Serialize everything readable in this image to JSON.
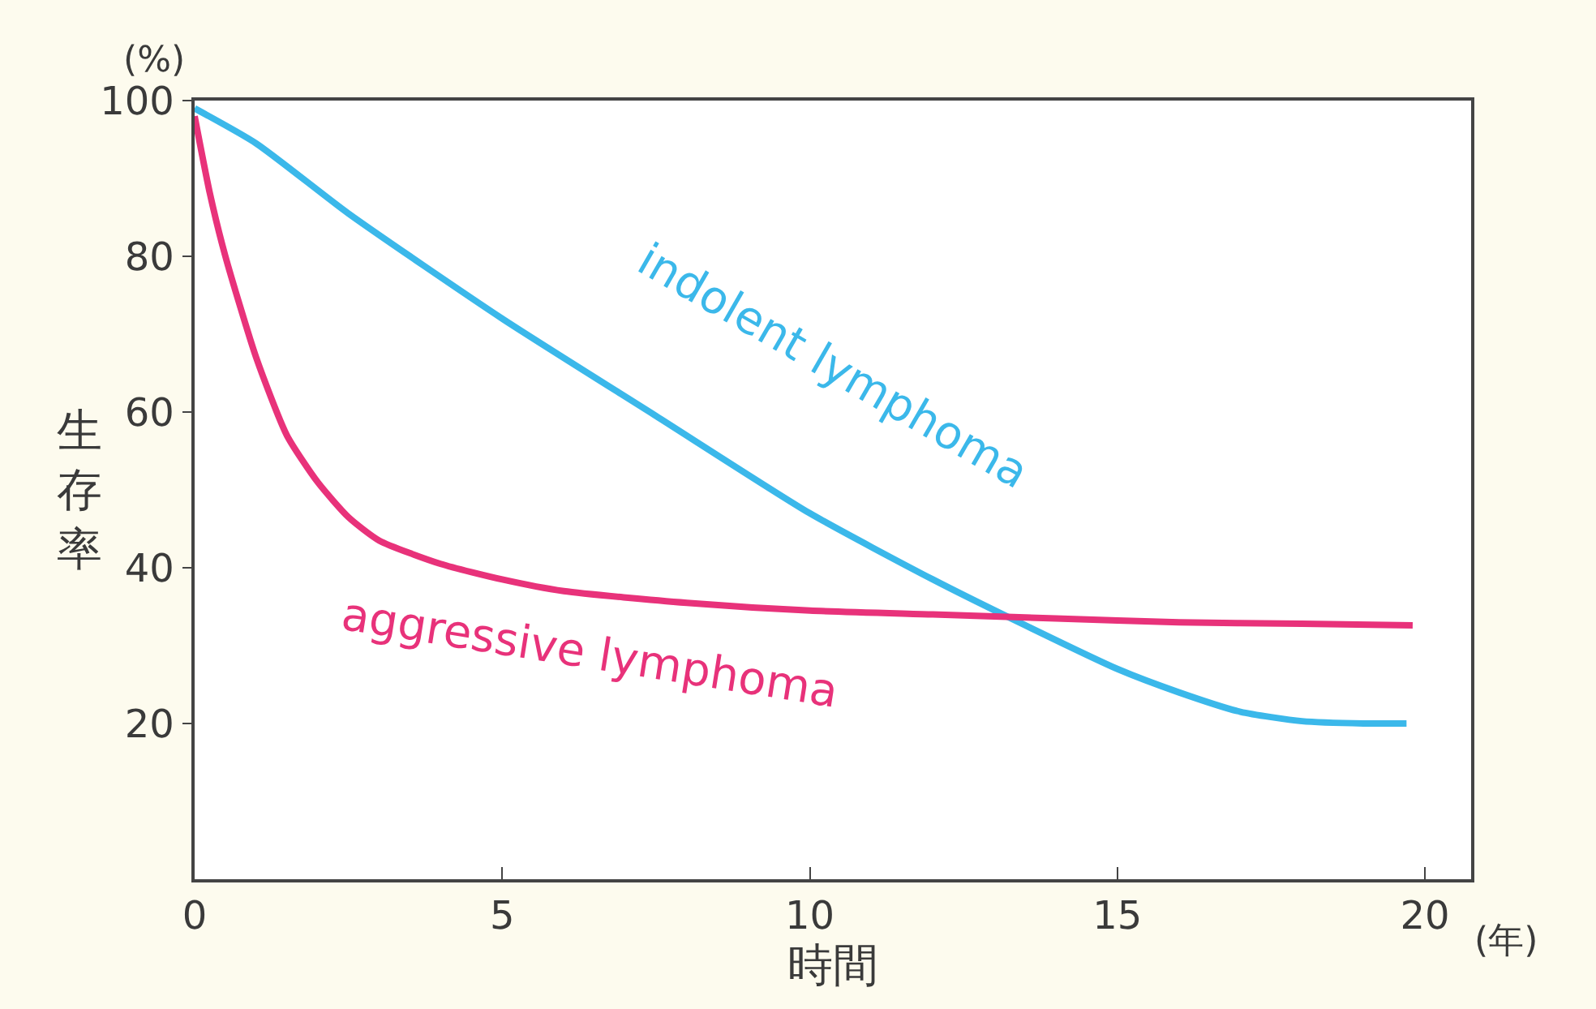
{
  "chart_data": {
    "type": "line",
    "xlabel": "時間",
    "ylabel": "生存率",
    "annotations": [
      "(%)",
      "(年)"
    ],
    "xlim": [
      0,
      20.75
    ],
    "ylim": [
      0,
      100
    ],
    "xticks": [
      0,
      5,
      10,
      15,
      20
    ],
    "yticks": [
      20,
      40,
      60,
      80,
      100
    ],
    "grid": false,
    "legend": false,
    "marker": "none",
    "line_style": "solid",
    "series": [
      {
        "name": "indolent lymphoma",
        "color": "#3bb8ea",
        "x": [
          0,
          1,
          2.5,
          5,
          7.5,
          10,
          12,
          13.4,
          15,
          16,
          17,
          18,
          19,
          19.7
        ],
        "values": [
          99,
          94.5,
          85.5,
          72,
          59.5,
          47,
          38.5,
          33,
          27,
          24,
          21.5,
          20.3,
          20,
          20
        ]
      },
      {
        "name": "aggressive lymphoma",
        "color": "#e8327a",
        "x": [
          0,
          0.25,
          0.5,
          1,
          1.5,
          2,
          2.5,
          3,
          4,
          5,
          6,
          8,
          10,
          12,
          14,
          16,
          18,
          19.8
        ],
        "values": [
          98,
          88,
          80,
          67,
          57,
          51,
          46.5,
          43.5,
          40.5,
          38.5,
          37,
          35.5,
          34.5,
          34,
          33.5,
          33,
          32.8,
          32.6
        ]
      }
    ]
  }
}
